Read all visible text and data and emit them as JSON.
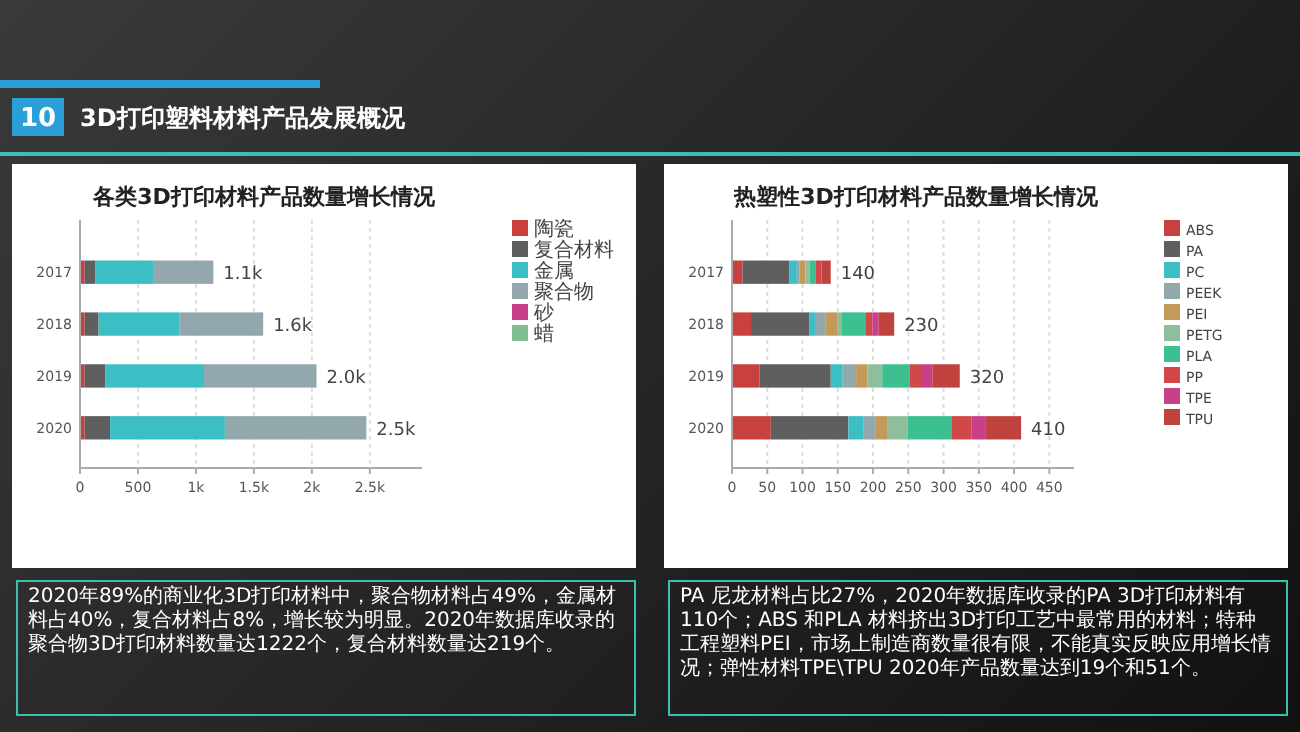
{
  "chart_data": [
    {
      "type": "other",
      "title": "3D打印塑料材料产品发展概况",
      "annotations": [
        "10"
      ]
    },
    {
      "type": "bar",
      "orientation": "horizontal",
      "stacked": true,
      "title": "各类3D打印材料产品数量增长情况",
      "categories": [
        "2017",
        "2018",
        "2019",
        "2020"
      ],
      "series": [
        {
          "name": "陶瓷",
          "color": "#c8413f",
          "values": [
            40,
            40,
            40,
            40
          ]
        },
        {
          "name": "复合材料",
          "color": "#5f5f5f",
          "values": [
            90,
            120,
            180,
            220
          ]
        },
        {
          "name": "金属",
          "color": "#3cbfc4",
          "values": [
            500,
            700,
            850,
            990
          ]
        },
        {
          "name": "聚合物",
          "color": "#92a8ad",
          "values": [
            520,
            720,
            970,
            1220
          ]
        },
        {
          "name": "砂",
          "color": "#c9408a",
          "values": [
            0,
            0,
            0,
            0
          ]
        },
        {
          "name": "蜡",
          "color": "#7fbf90",
          "values": [
            0,
            0,
            0,
            0
          ]
        }
      ],
      "xlim": [
        0,
        2950
      ],
      "xticks": [
        0,
        500,
        {
          "value": 1000,
          "label": "1k"
        },
        {
          "value": 1500,
          "label": "1.5k"
        },
        {
          "value": 2000,
          "label": "2k"
        },
        {
          "value": 2500,
          "label": "2.5k"
        }
      ],
      "grid": "x",
      "legend": "right",
      "totals": [
        "1.1k",
        "1.6k",
        "2.0k",
        "2.5k"
      ],
      "annotations": [
        "2020年89%的商业化3D打印材料中，聚合物材料占49%，金属材料占40%，复合材料占8%，增长较为明显。2020年数据库收录的聚合物3D打印材料数量达1222个，复合材料数量达219个。"
      ]
    },
    {
      "type": "bar",
      "orientation": "horizontal",
      "stacked": true,
      "title": "热塑性3D打印材料产品数量增长情况",
      "categories": [
        "2017",
        "2018",
        "2019",
        "2020"
      ],
      "series": [
        {
          "name": "ABS",
          "color": "#c8413f",
          "values": [
            15,
            27,
            39,
            55
          ]
        },
        {
          "name": "PA",
          "color": "#5f5f5f",
          "values": [
            66,
            83,
            101,
            110
          ]
        },
        {
          "name": "PC",
          "color": "#3cbfc4",
          "values": [
            11,
            9,
            17,
            21
          ]
        },
        {
          "name": "PEEK",
          "color": "#92a8ad",
          "values": [
            4,
            14,
            19,
            18
          ]
        },
        {
          "name": "PEI",
          "color": "#c49a5a",
          "values": [
            8,
            17,
            16,
            17
          ]
        },
        {
          "name": "PETG",
          "color": "#8fbf9a",
          "values": [
            6,
            6,
            21,
            28
          ]
        },
        {
          "name": "PLA",
          "color": "#3cc08f",
          "values": [
            9,
            34,
            39,
            63
          ]
        },
        {
          "name": "PP",
          "color": "#d04848",
          "values": [
            8,
            9,
            16,
            28
          ]
        },
        {
          "name": "TPE",
          "color": "#c9408a",
          "values": [
            0,
            9,
            16,
            19
          ]
        },
        {
          "name": "TPU",
          "color": "#c0423f",
          "values": [
            13,
            22,
            39,
            51
          ]
        }
      ],
      "xlim": [
        0,
        485
      ],
      "xticks": [
        0,
        50,
        100,
        150,
        200,
        250,
        300,
        350,
        400,
        450
      ],
      "grid": "x",
      "legend": "right",
      "totals": [
        "140",
        "230",
        "320",
        "410"
      ],
      "annotations": [
        "PA 尼龙材料占比27%，2020年数据库收录的PA 3D打印材料有110个；ABS 和PLA 材料挤出3D打印工艺中最常用的材料；特种工程塑料PEI，市场上制造商数量很有限，不能真实反映应用增长情况；弹性材料TPE\\TPU 2020年产品数量达到19个和51个。"
      ]
    }
  ]
}
